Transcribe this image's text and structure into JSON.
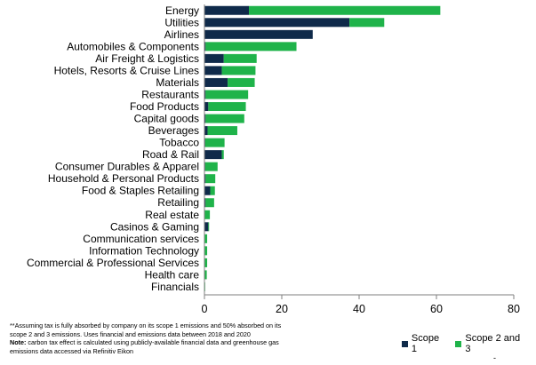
{
  "chart_data": {
    "type": "bar",
    "orientation": "horizontal",
    "stacked": true,
    "categories": [
      "Energy",
      "Utilities",
      "Airlines",
      "Automobiles & Components",
      "Air Freight & Logistics",
      "Hotels, Resorts & Cruise Lines",
      "Materials",
      "Restaurants",
      "Food Products",
      "Capital goods",
      "Beverages",
      "Tobacco",
      "Road & Rail",
      "Consumer Durables & Apparel",
      "Household & Personal Products",
      "Food & Staples Retailing",
      "Retailing",
      "Real estate",
      "Casinos & Gaming",
      "Communication services",
      "Information Technology",
      "Commercial  & Professional Services",
      "Health care",
      "Financials"
    ],
    "series": [
      {
        "name": "Scope 1",
        "color": "#0f2a4a",
        "values": [
          11.5,
          37.5,
          28.0,
          0.3,
          5.0,
          4.5,
          6.0,
          0.3,
          1.0,
          0.3,
          0.8,
          0.2,
          4.5,
          0.2,
          0.3,
          1.5,
          0.3,
          0.1,
          1.0,
          0.1,
          0.1,
          0.1,
          0.1,
          0.0
        ]
      },
      {
        "name": "Scope 2 and 3",
        "color": "#1fb34a",
        "values": [
          49.5,
          9.0,
          0.0,
          23.5,
          8.5,
          8.7,
          7.0,
          11.0,
          9.7,
          10.0,
          7.7,
          5.0,
          0.5,
          3.2,
          2.5,
          1.2,
          2.2,
          1.3,
          0.2,
          0.6,
          0.6,
          0.6,
          0.5,
          0.1
        ]
      }
    ],
    "xlim": [
      0,
      80
    ],
    "xticks": [
      "0",
      "20",
      "40",
      "60",
      "80"
    ],
    "grid": false,
    "legend_position": "bottom-right"
  },
  "footnote": {
    "line1": "**Assuming tax is fully absorbed by company on its scope 1 emissions and 50% absorbed on its",
    "line2": "scope 2 and 3 emissions. Uses financial and emissions data between 2018 and 2020",
    "note_label": "Note:",
    "note_text": " carbon tax effect is calculated using publicly-available financial data and greenhouse gas",
    "line4": "emissions data accessed via Refinitiv Eikon"
  },
  "legend": {
    "scope1": "Scope 1",
    "scope23": "Scope 2 and 3"
  },
  "trailing_mark": "-"
}
